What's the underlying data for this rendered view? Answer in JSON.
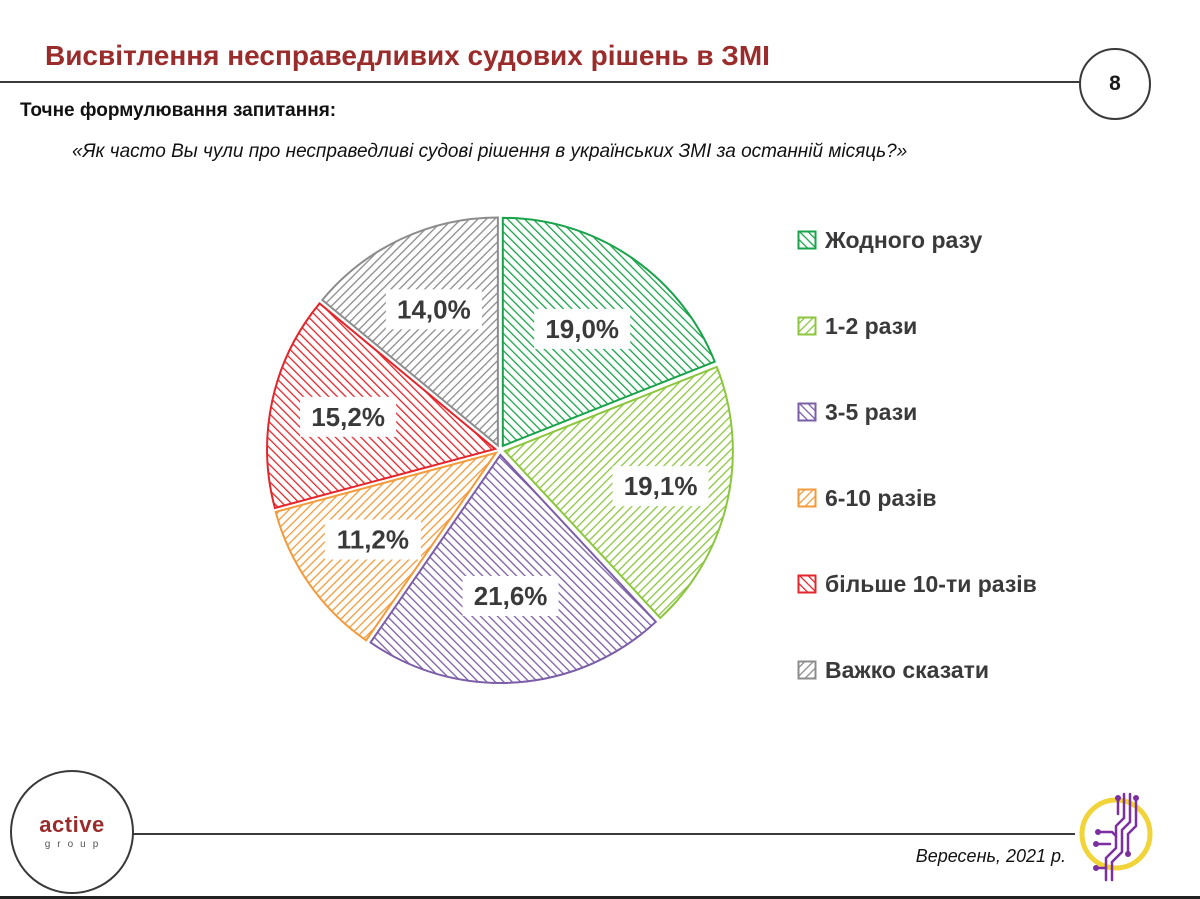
{
  "header": {
    "title": "Висвітлення несправедливих судових рішень в ЗМІ",
    "page_number": "8"
  },
  "question": {
    "heading": "Точне формулювання запитання:",
    "text": "«Як часто Вы чули про несправедливі судові рішення в українських ЗМІ за останній місяць?»"
  },
  "chart_data": {
    "type": "pie",
    "slices": [
      {
        "label": "Жодного разу",
        "value": 19.0,
        "display": "19,0%",
        "color": "#1aa34a"
      },
      {
        "label": "1-2 рази",
        "value": 19.1,
        "display": "19,1%",
        "color": "#8cc63f"
      },
      {
        "label": "3-5 рази",
        "value": 21.6,
        "display": "21,6%",
        "color": "#7b5ea7"
      },
      {
        "label": "6-10 разів",
        "value": 11.2,
        "display": "11,2%",
        "color": "#f39a3c"
      },
      {
        "label": "більше 10-ти разів",
        "value": 15.2,
        "display": "15,2%",
        "color": "#e3262b"
      },
      {
        "label": "Важко сказати",
        "value": 14.0,
        "display": "14,0%",
        "color": "#8c8c8c"
      }
    ],
    "legend_placement": "right",
    "fill_pattern": "diagonal hatching"
  },
  "footer": {
    "logo_text": "active",
    "logo_subtext": "group",
    "date": "Вересень, 2021 р."
  },
  "colors": {
    "title": "#9b2c2c",
    "rule": "#3a3a3a",
    "emblem_ring": "#f0d43a",
    "emblem_lines": "#7b2fa0"
  }
}
